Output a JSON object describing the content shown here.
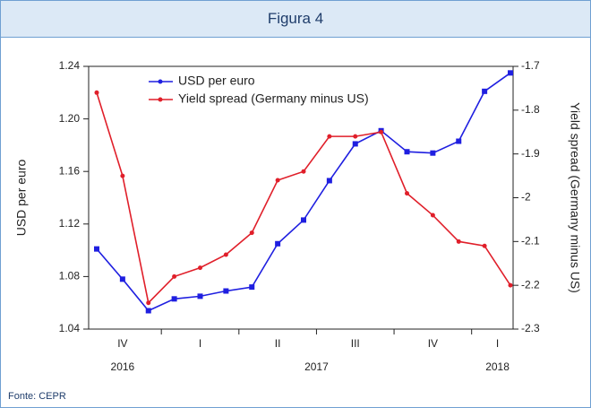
{
  "header": {
    "title": "Figura 4"
  },
  "footer": {
    "source": "Fonte: CEPR"
  },
  "chart_data": {
    "type": "line",
    "categories": [
      null,
      null,
      null,
      null,
      null,
      null,
      null,
      null,
      null,
      null,
      null,
      null,
      null,
      null,
      null,
      null,
      null
    ],
    "quarter_labels": [
      "IV",
      "I",
      "II",
      "III",
      "IV",
      "I"
    ],
    "year_labels": [
      "2016",
      "2017",
      "2018"
    ],
    "ylabel": "USD per euro",
    "y2label": "Yield spread (Germany minus US)",
    "ylim": [
      1.04,
      1.24
    ],
    "yticks": [
      {
        "value": 1.04,
        "label": "1.04"
      },
      {
        "value": 1.08,
        "label": "1.08"
      },
      {
        "value": 1.12,
        "label": "1.12"
      },
      {
        "value": 1.16,
        "label": "1.16"
      },
      {
        "value": 1.2,
        "label": "1.20"
      },
      {
        "value": 1.24,
        "label": "1.24"
      }
    ],
    "y2lim": [
      -2.3,
      -1.7
    ],
    "y2ticks": [
      -2.3,
      -2.2,
      -2.1,
      -2.0,
      -1.9,
      -1.8,
      -1.7
    ],
    "legend": "upper left",
    "series": [
      {
        "name": "USD per euro",
        "color": "#1f1fe0",
        "values": [
          1.101,
          1.078,
          1.054,
          1.063,
          1.065,
          1.069,
          1.072,
          1.105,
          1.123,
          1.153,
          1.181,
          1.191,
          1.175,
          1.174,
          1.183,
          1.221,
          1.235
        ]
      },
      {
        "name": "Yield spread (Germany minus US)",
        "color": "#e01f2a",
        "axis": "y2",
        "values": [
          -1.76,
          -1.95,
          -2.24,
          -2.18,
          -2.16,
          -2.13,
          -2.08,
          -1.96,
          -1.94,
          -1.86,
          -1.86,
          -1.85,
          -1.99,
          -2.04,
          -2.1,
          -2.11,
          -2.2
        ]
      }
    ]
  }
}
